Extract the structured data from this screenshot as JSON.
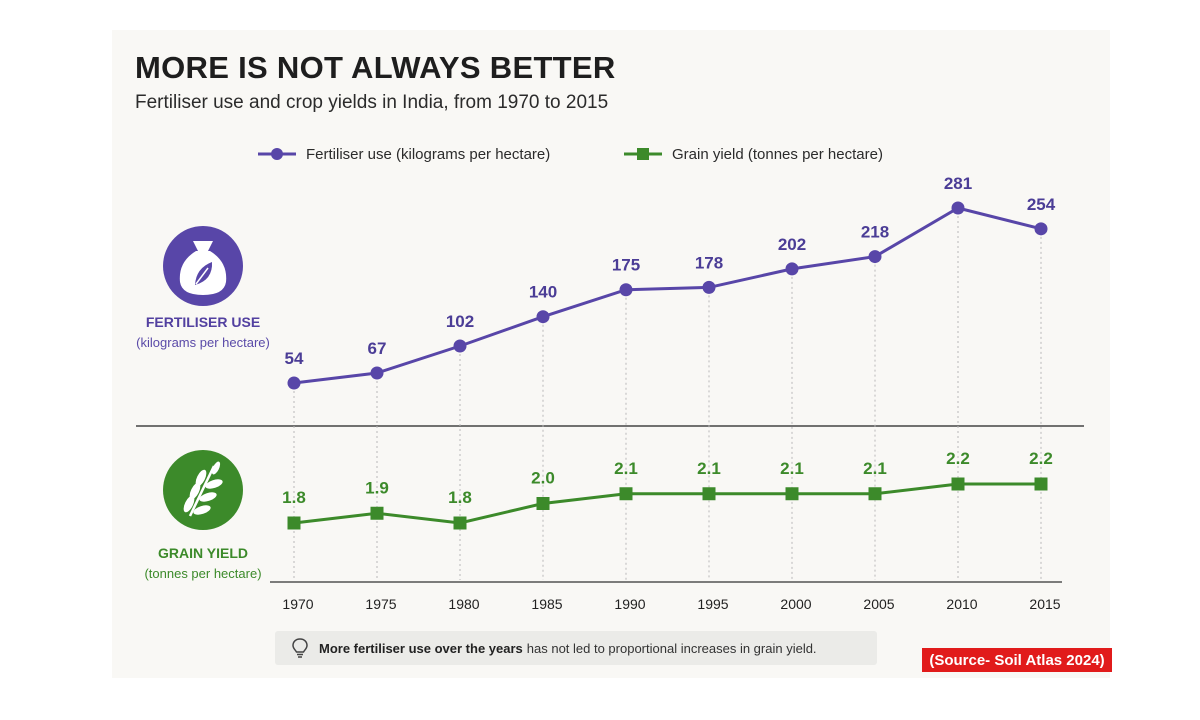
{
  "title": "MORE IS NOT ALWAYS BETTER",
  "subtitle": "Fertiliser use and crop yields in India, from 1970 to 2015",
  "legend": {
    "fertiliser": "Fertiliser use (kilograms per hectare)",
    "grain": "Grain yield (tonnes per hectare)"
  },
  "panels": {
    "fertiliser": {
      "title": "FERTILISER USE",
      "subtitle": "(kilograms per hectare)"
    },
    "grain": {
      "title": "GRAIN YIELD",
      "subtitle": "(tonnes per hectare)"
    }
  },
  "note": {
    "bold": "More fertiliser use over the years",
    "rest": "has not led to proportional increases in grain yield."
  },
  "source": "(Source- Soil Atlas 2024)",
  "colors": {
    "fertiliser": "#5846a8",
    "grain": "#3c8a2a",
    "source_bg": "#e11b1b"
  },
  "icons": {
    "fertiliser": "fertiliser-sack-icon",
    "grain": "wheat-icon",
    "note": "lightbulb-icon"
  },
  "chart_data": {
    "type": "line",
    "x": [
      "1970",
      "1975",
      "1980",
      "1985",
      "1990",
      "1995",
      "2000",
      "2005",
      "2010",
      "2015"
    ],
    "series": [
      {
        "name": "Fertiliser use (kilograms per hectare)",
        "values": [
          54,
          67,
          102,
          140,
          175,
          178,
          202,
          218,
          281,
          254
        ],
        "labels": [
          "54",
          "67",
          "102",
          "140",
          "175",
          "178",
          "202",
          "218",
          "281",
          "254"
        ]
      },
      {
        "name": "Grain yield (tonnes per hectare)",
        "values": [
          1.8,
          1.9,
          1.8,
          2.0,
          2.1,
          2.1,
          2.1,
          2.1,
          2.2,
          2.2
        ],
        "labels": [
          "1.8",
          "1.9",
          "1.8",
          "2.0",
          "2.1",
          "2.1",
          "2.1",
          "2.1",
          "2.2",
          "2.2"
        ]
      }
    ],
    "title": "MORE IS NOT ALWAYS BETTER",
    "legend": "top-center",
    "grid": false
  }
}
